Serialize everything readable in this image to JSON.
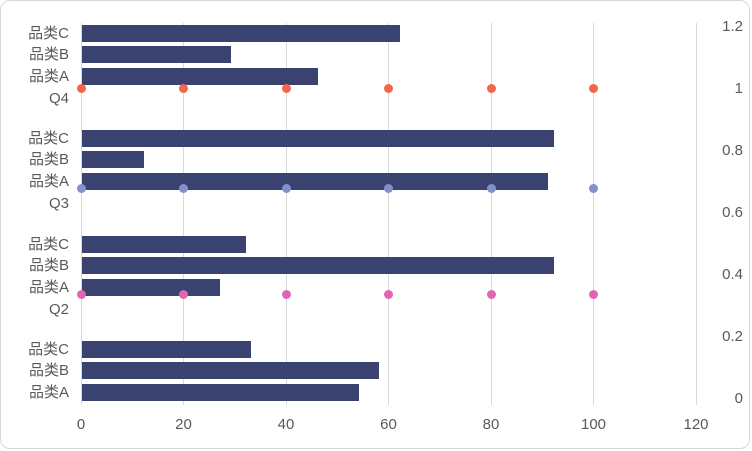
{
  "chart_data": {
    "type": "bar",
    "orientation": "horizontal",
    "title": "",
    "x_axis": {
      "ticks": [
        0,
        20,
        40,
        60,
        80,
        100,
        120
      ],
      "range": [
        0,
        120
      ]
    },
    "secondary_y_axis": {
      "ticks": [
        "1.2",
        "1",
        "0.8",
        "0.6",
        "0.4",
        "0.2",
        "0"
      ],
      "tick_values": [
        1.2,
        1,
        0.8,
        0.6,
        0.4,
        0.2,
        0
      ],
      "range": [
        0,
        1.2
      ],
      "position": "right"
    },
    "bar_color": "#3a426f",
    "gridline_color": "#d9d9d9",
    "axis_text_color": "#595959",
    "groups": [
      {
        "name": "Q4",
        "bars": [
          {
            "label": "品类C",
            "value": 62
          },
          {
            "label": "品类B",
            "value": 29
          },
          {
            "label": "品类A",
            "value": 46
          }
        ]
      },
      {
        "name": "Q3",
        "bars": [
          {
            "label": "品类C",
            "value": 92
          },
          {
            "label": "品类B",
            "value": 12
          },
          {
            "label": "品类A",
            "value": 91
          }
        ]
      },
      {
        "name": "Q2",
        "bars": [
          {
            "label": "品类C",
            "value": 32
          },
          {
            "label": "品类B",
            "value": 92
          },
          {
            "label": "品类A",
            "value": 27
          }
        ]
      },
      {
        "name": "",
        "bars": [
          {
            "label": "品类C",
            "value": 33
          },
          {
            "label": "品类B",
            "value": 58
          },
          {
            "label": "品类A",
            "value": 54
          }
        ]
      }
    ],
    "dot_series": [
      {
        "name": "orange-dots",
        "color": "#f2664b",
        "y": 1.0,
        "x": [
          0,
          20,
          40,
          60,
          80,
          100
        ]
      },
      {
        "name": "periwinkle-dots",
        "color": "#8290cb",
        "y": 0.675,
        "x": [
          0,
          20,
          40,
          60,
          80,
          100
        ]
      },
      {
        "name": "pink-dots",
        "color": "#df66b5",
        "y": 0.335,
        "x": [
          0,
          20,
          40,
          60,
          80,
          100
        ]
      }
    ],
    "legend": "none",
    "grid": "vertical-only"
  }
}
